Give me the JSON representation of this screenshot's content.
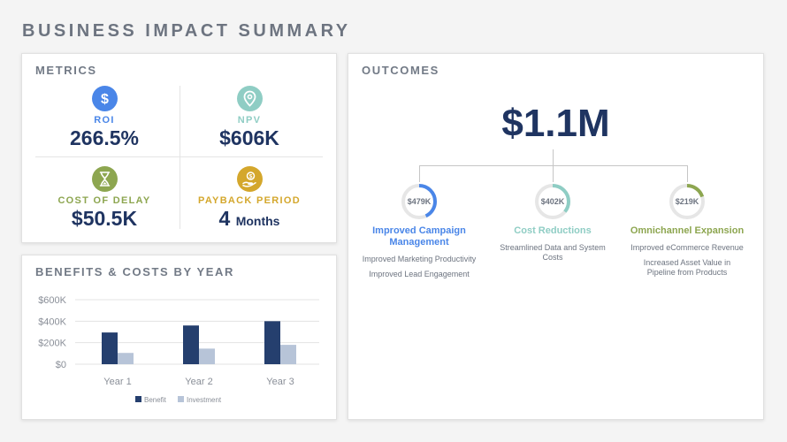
{
  "page": {
    "title": "BUSINESS IMPACT SUMMARY"
  },
  "colors": {
    "navy": "#1f3461",
    "blue": "#4a86e8",
    "teal": "#8fcdc4",
    "olive": "#8da650",
    "gold": "#d4a72c",
    "investment": "#b7c4d8"
  },
  "metrics": {
    "title": "METRICS",
    "items": [
      {
        "icon": "dollar-icon",
        "label": "ROI",
        "value": "266.5%",
        "color": "#4a86e8"
      },
      {
        "icon": "location-pin-icon",
        "label": "NPV",
        "value": "$606K",
        "color": "#8fcdc4"
      },
      {
        "icon": "hourglass-icon",
        "label": "COST OF DELAY",
        "value": "$50.5K",
        "color": "#8da650"
      },
      {
        "icon": "hand-coin-icon",
        "label": "PAYBACK PERIOD",
        "value": "4",
        "unit": "Months",
        "color": "#d4a72c"
      }
    ]
  },
  "benefits_costs": {
    "title": "BENEFITS & COSTS BY YEAR",
    "chart_data": {
      "type": "bar",
      "title": "",
      "categories": [
        "Year 1",
        "Year 2",
        "Year 3"
      ],
      "series": [
        {
          "name": "Benefit",
          "values": [
            295000,
            360000,
            400000
          ],
          "color": "#253f6e"
        },
        {
          "name": "Investment",
          "values": [
            105000,
            145000,
            180000
          ],
          "color": "#b7c4d8"
        }
      ],
      "yticks": [
        "$0",
        "$200K",
        "$400K",
        "$600K"
      ],
      "ylim": [
        0,
        600000
      ],
      "grid": true,
      "legend": "bottom-center"
    }
  },
  "outcomes": {
    "title": "OUTCOMES",
    "total": "$1.1M",
    "items": [
      {
        "value": "$479K",
        "fraction": 0.43,
        "title": "Improved Campaign Management",
        "color": "#4a86e8",
        "details": [
          "Improved Marketing Productivity",
          "Improved Lead Engagement"
        ]
      },
      {
        "value": "$402K",
        "fraction": 0.36,
        "title": "Cost Reductions",
        "color": "#8fcdc4",
        "details": [
          "Streamlined Data and System Costs"
        ]
      },
      {
        "value": "$219K",
        "fraction": 0.2,
        "title": "Omnichannel Expansion",
        "color": "#8da650",
        "details": [
          "Improved eCommerce Revenue",
          "Increased Asset Value in Pipeline from Products"
        ]
      }
    ]
  }
}
